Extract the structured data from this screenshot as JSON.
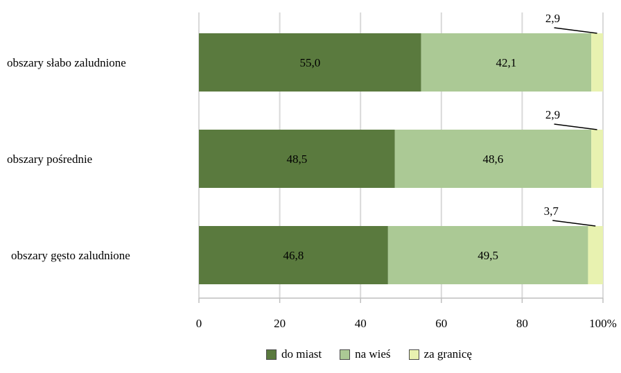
{
  "chart_data": {
    "type": "bar",
    "orientation": "horizontal",
    "stacked": true,
    "categories": [
      "obszary słabo zaludnione",
      "obszary pośrednie",
      "obszary gęsto zaludnione"
    ],
    "series": [
      {
        "name": "do miast",
        "values": [
          55.0,
          48.5,
          46.8
        ],
        "labels": [
          "55,0",
          "48,5",
          "46,8"
        ],
        "color": "#5a7a3e"
      },
      {
        "name": "na wieś",
        "values": [
          42.1,
          48.6,
          49.5
        ],
        "labels": [
          "42,1",
          "48,6",
          "49,5"
        ],
        "color": "#abc995"
      },
      {
        "name": "za granicę",
        "values": [
          2.9,
          2.9,
          3.7
        ],
        "labels": [
          "2,9",
          "2,9",
          "3,7"
        ],
        "color": "#e8f2b0"
      }
    ],
    "xlim": [
      0,
      100
    ],
    "x_ticks": [
      "0",
      "20",
      "40",
      "60",
      "80",
      "100%"
    ],
    "grid": true,
    "legend_position": "bottom"
  }
}
